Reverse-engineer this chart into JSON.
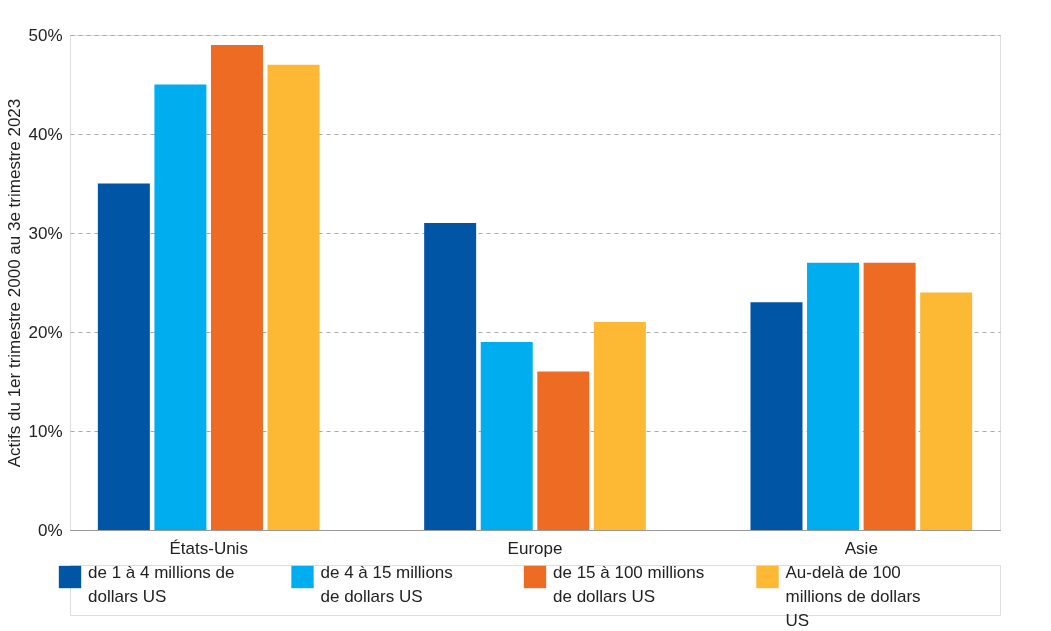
{
  "chart_data": {
    "type": "bar",
    "ylabel": "Actifs du 1er trimestre 2000 au 3e trimestre 2023",
    "categories": [
      "États-Unis",
      "Europe",
      "Asie"
    ],
    "series": [
      {
        "name": "de 1 à 4 millions de dollars US",
        "color": "#0055a5",
        "values": [
          35,
          31,
          23
        ]
      },
      {
        "name": "de 4 à 15 millions de dollars US",
        "color": "#00aeef",
        "values": [
          45,
          19,
          27
        ]
      },
      {
        "name": "de 15 à 100 millions de dollars US",
        "color": "#ee6b24",
        "values": [
          49,
          16,
          27
        ]
      },
      {
        "name": "Au-delà de 100 millions de dollars US",
        "color": "#fdb933",
        "values": [
          47,
          21,
          24
        ]
      }
    ],
    "ylim": [
      0,
      50
    ],
    "yticks": [
      {
        "value": 0,
        "label": "0%"
      },
      {
        "value": 10,
        "label": "10%"
      },
      {
        "value": 20,
        "label": "20%"
      },
      {
        "value": 30,
        "label": "30%"
      },
      {
        "value": 40,
        "label": "40%"
      },
      {
        "value": 50,
        "label": "50%"
      }
    ],
    "grid": "y",
    "legend": "bottom"
  }
}
